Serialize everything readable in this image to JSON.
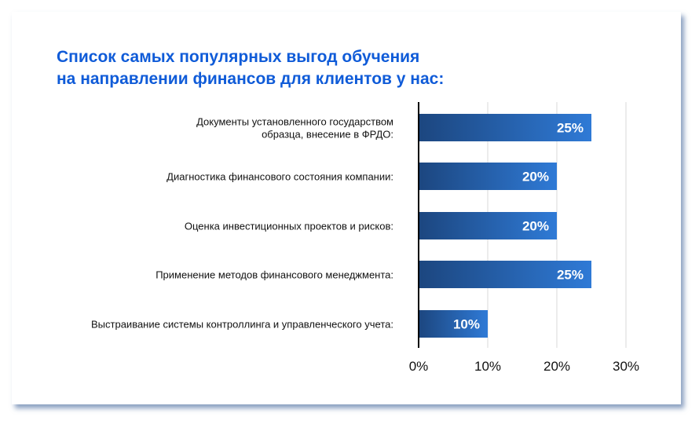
{
  "chart_data": {
    "type": "bar",
    "orientation": "horizontal",
    "title": [
      "Список самых популярных выгод обучения",
      "на направлении финансов для клиентов у нас:"
    ],
    "categories": [
      [
        "Документы установленного государством",
        "образца, внесение в ФРДО:"
      ],
      [
        "Диагностика финансового состояния компании:"
      ],
      [
        "Оценка инвестиционных проектов и рисков:"
      ],
      [
        "Применение методов финансового менеджмента:"
      ],
      [
        "Выстраивание системы контроллинга и управленческого учета:"
      ]
    ],
    "values": [
      25,
      20,
      20,
      25,
      10
    ],
    "data_labels": [
      "25%",
      "20%",
      "20%",
      "25%",
      "10%"
    ],
    "x_ticks": [
      "0%",
      "10%",
      "20%",
      "30%"
    ],
    "xlim": [
      0,
      30
    ],
    "grid": true,
    "colors": {
      "title": "#0f5bd8",
      "bar_start": "#1c467f",
      "bar_end": "#2f7ad6",
      "grid": "#ececec"
    }
  }
}
